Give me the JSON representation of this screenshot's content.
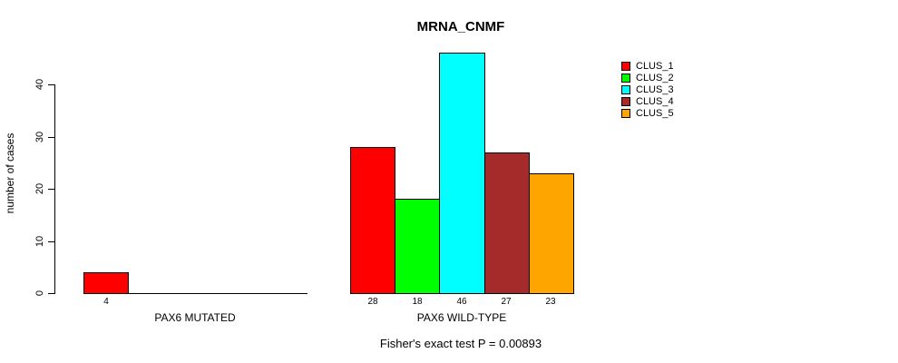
{
  "chart_data": {
    "type": "bar",
    "title": "MRNA_CNMF",
    "ylabel": "number of cases",
    "xlabel": "",
    "ylim": [
      0,
      46
    ],
    "yticks": [
      0,
      10,
      20,
      30,
      40
    ],
    "grid": false,
    "background": "#FFFFFF",
    "axis_color": "#000000",
    "annotation": "Fisher's exact test P = 0.00893",
    "categories": [
      "PAX6 MUTATED",
      "PAX6 WILD-TYPE"
    ],
    "groups": [
      {
        "label": "PAX6 MUTATED",
        "slots": 5,
        "bars": [
          {
            "cluster": "CLUS_1",
            "value": 4,
            "color": "#FF0000"
          }
        ]
      },
      {
        "label": "PAX6 WILD-TYPE",
        "slots": 5,
        "bars": [
          {
            "cluster": "CLUS_1",
            "value": 28,
            "color": "#FF0000"
          },
          {
            "cluster": "CLUS_2",
            "value": 18,
            "color": "#00FF00"
          },
          {
            "cluster": "CLUS_3",
            "value": 46,
            "color": "#00FFFF"
          },
          {
            "cluster": "CLUS_4",
            "value": 27,
            "color": "#A52A2A"
          },
          {
            "cluster": "CLUS_5",
            "value": 23,
            "color": "#FFA500"
          }
        ]
      }
    ],
    "legend": {
      "position": "right",
      "entries": [
        {
          "label": "CLUS_1",
          "color": "#FF0000"
        },
        {
          "label": "CLUS_2",
          "color": "#00FF00"
        },
        {
          "label": "CLUS_3",
          "color": "#00FFFF"
        },
        {
          "label": "CLUS_4",
          "color": "#A52A2A"
        },
        {
          "label": "CLUS_5",
          "color": "#FFA500"
        }
      ]
    }
  }
}
